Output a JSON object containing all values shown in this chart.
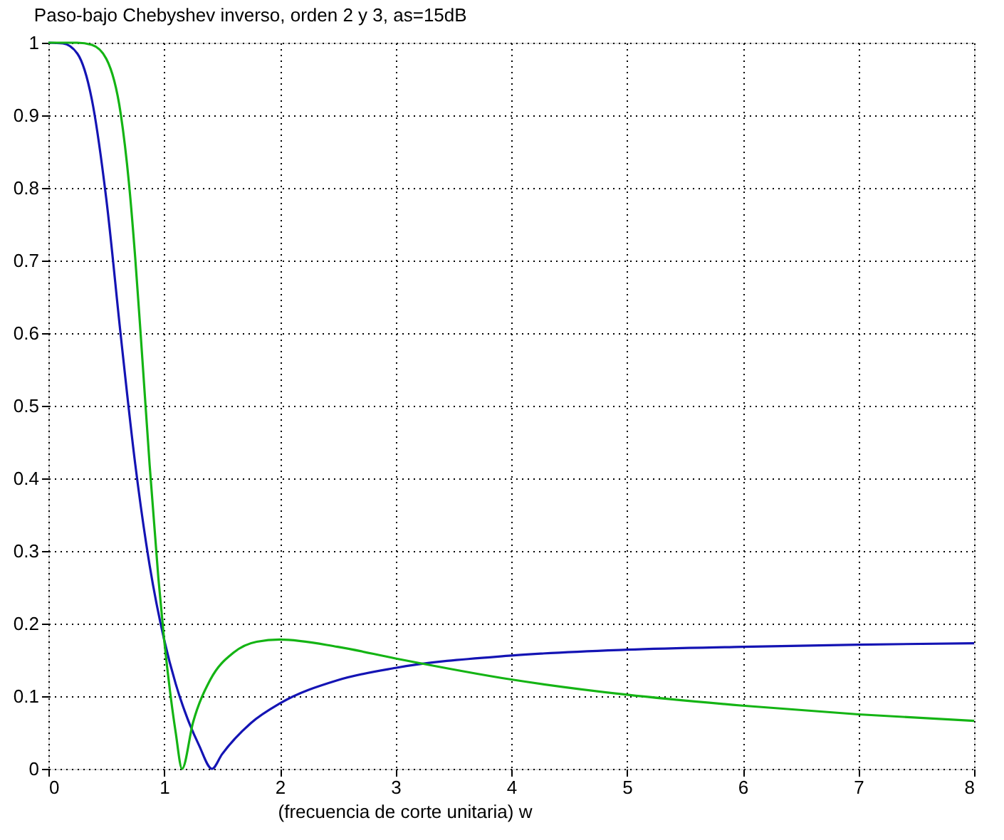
{
  "chart_data": {
    "type": "line",
    "title": "Paso-bajo Chebyshev inverso, orden 2 y 3, as=15dB",
    "xlabel": "(frecuencia de corte unitaria)          w",
    "xlim": [
      0,
      8
    ],
    "ylim": [
      0,
      1
    ],
    "xticks": [
      0,
      1,
      2,
      3,
      4,
      5,
      6,
      7,
      8
    ],
    "yticks": [
      0,
      0.1,
      0.2,
      0.3,
      0.4,
      0.5,
      0.6,
      0.7,
      0.8,
      0.9,
      1
    ],
    "grid": true,
    "line_style": "solid",
    "marker": "none",
    "series": [
      {
        "color": "#1414b4",
        "x": [
          0,
          0.125,
          0.25,
          0.375,
          0.5,
          0.625,
          0.75,
          0.875,
          1,
          1.1,
          1.2,
          1.3,
          1.414,
          1.5,
          1.75,
          2,
          2.5,
          3,
          4,
          5,
          6,
          7,
          8
        ],
        "values": [
          1,
          0.999,
          0.985,
          0.922,
          0.785,
          0.597,
          0.42,
          0.28,
          0.178,
          0.117,
          0.07,
          0.033,
          0,
          0.02,
          0.063,
          0.09,
          0.122,
          0.139,
          0.156,
          0.164,
          0.168,
          0.171,
          0.173
        ]
      },
      {
        "color": "#14b414",
        "x": [
          0,
          0.25,
          0.375,
          0.5,
          0.625,
          0.7,
          0.75,
          0.8,
          0.875,
          0.95,
          1,
          1.05,
          1.1,
          1.155,
          1.25,
          1.4,
          1.6,
          1.8,
          2,
          2.5,
          3,
          4,
          5,
          6,
          7,
          8
        ],
        "values": [
          1,
          1,
          0.997,
          0.978,
          0.902,
          0.8,
          0.704,
          0.592,
          0.418,
          0.263,
          0.178,
          0.108,
          0.05,
          0,
          0.064,
          0.123,
          0.16,
          0.175,
          0.178,
          0.168,
          0.152,
          0.123,
          0.102,
          0.087,
          0.075,
          0.066
        ]
      }
    ]
  }
}
